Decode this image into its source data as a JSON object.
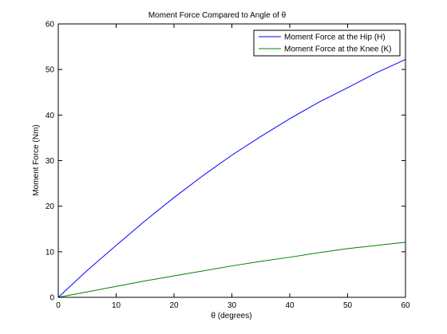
{
  "chart_data": {
    "type": "line",
    "title": "Moment Force Compared to Angle of   θ",
    "xlabel": "θ (degrees)",
    "ylabel": "Moment Force (Nm)",
    "xlim": [
      0,
      60
    ],
    "ylim": [
      0,
      60
    ],
    "xticks": [
      0,
      10,
      20,
      30,
      40,
      50,
      60
    ],
    "yticks": [
      0,
      10,
      20,
      30,
      40,
      50,
      60
    ],
    "grid": false,
    "legend_position": "top-right",
    "series": [
      {
        "name": "Moment Force at the Hip (H)",
        "color": "#0000ff",
        "x": [
          0,
          5,
          10,
          15,
          20,
          25,
          30,
          35,
          40,
          45,
          50,
          55,
          60
        ],
        "y": [
          0.0,
          5.9,
          11.4,
          16.8,
          21.9,
          26.7,
          31.2,
          35.3,
          39.2,
          42.8,
          46.0,
          49.3,
          52.2
        ]
      },
      {
        "name": "Moment Force at the Knee (K)",
        "color": "#008000",
        "x": [
          0,
          5,
          10,
          15,
          20,
          25,
          30,
          35,
          40,
          45,
          50,
          55,
          60
        ],
        "y": [
          0.0,
          1.2,
          2.4,
          3.6,
          4.7,
          5.8,
          6.9,
          7.9,
          8.8,
          9.8,
          10.7,
          11.4,
          12.1
        ]
      }
    ]
  }
}
